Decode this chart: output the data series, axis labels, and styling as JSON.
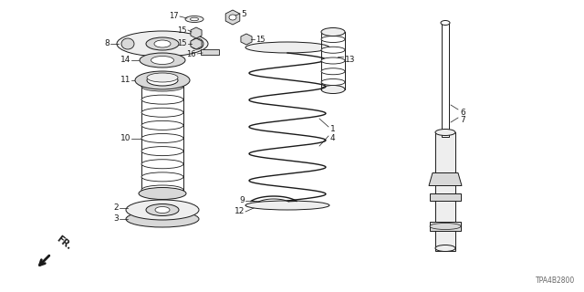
{
  "background_color": "#ffffff",
  "line_color": "#1a1a1a",
  "fill_light": "#eeeeee",
  "fill_mid": "#d8d8d8",
  "watermark": "TPA4B2800",
  "figsize": [
    6.4,
    3.2
  ],
  "dpi": 100
}
